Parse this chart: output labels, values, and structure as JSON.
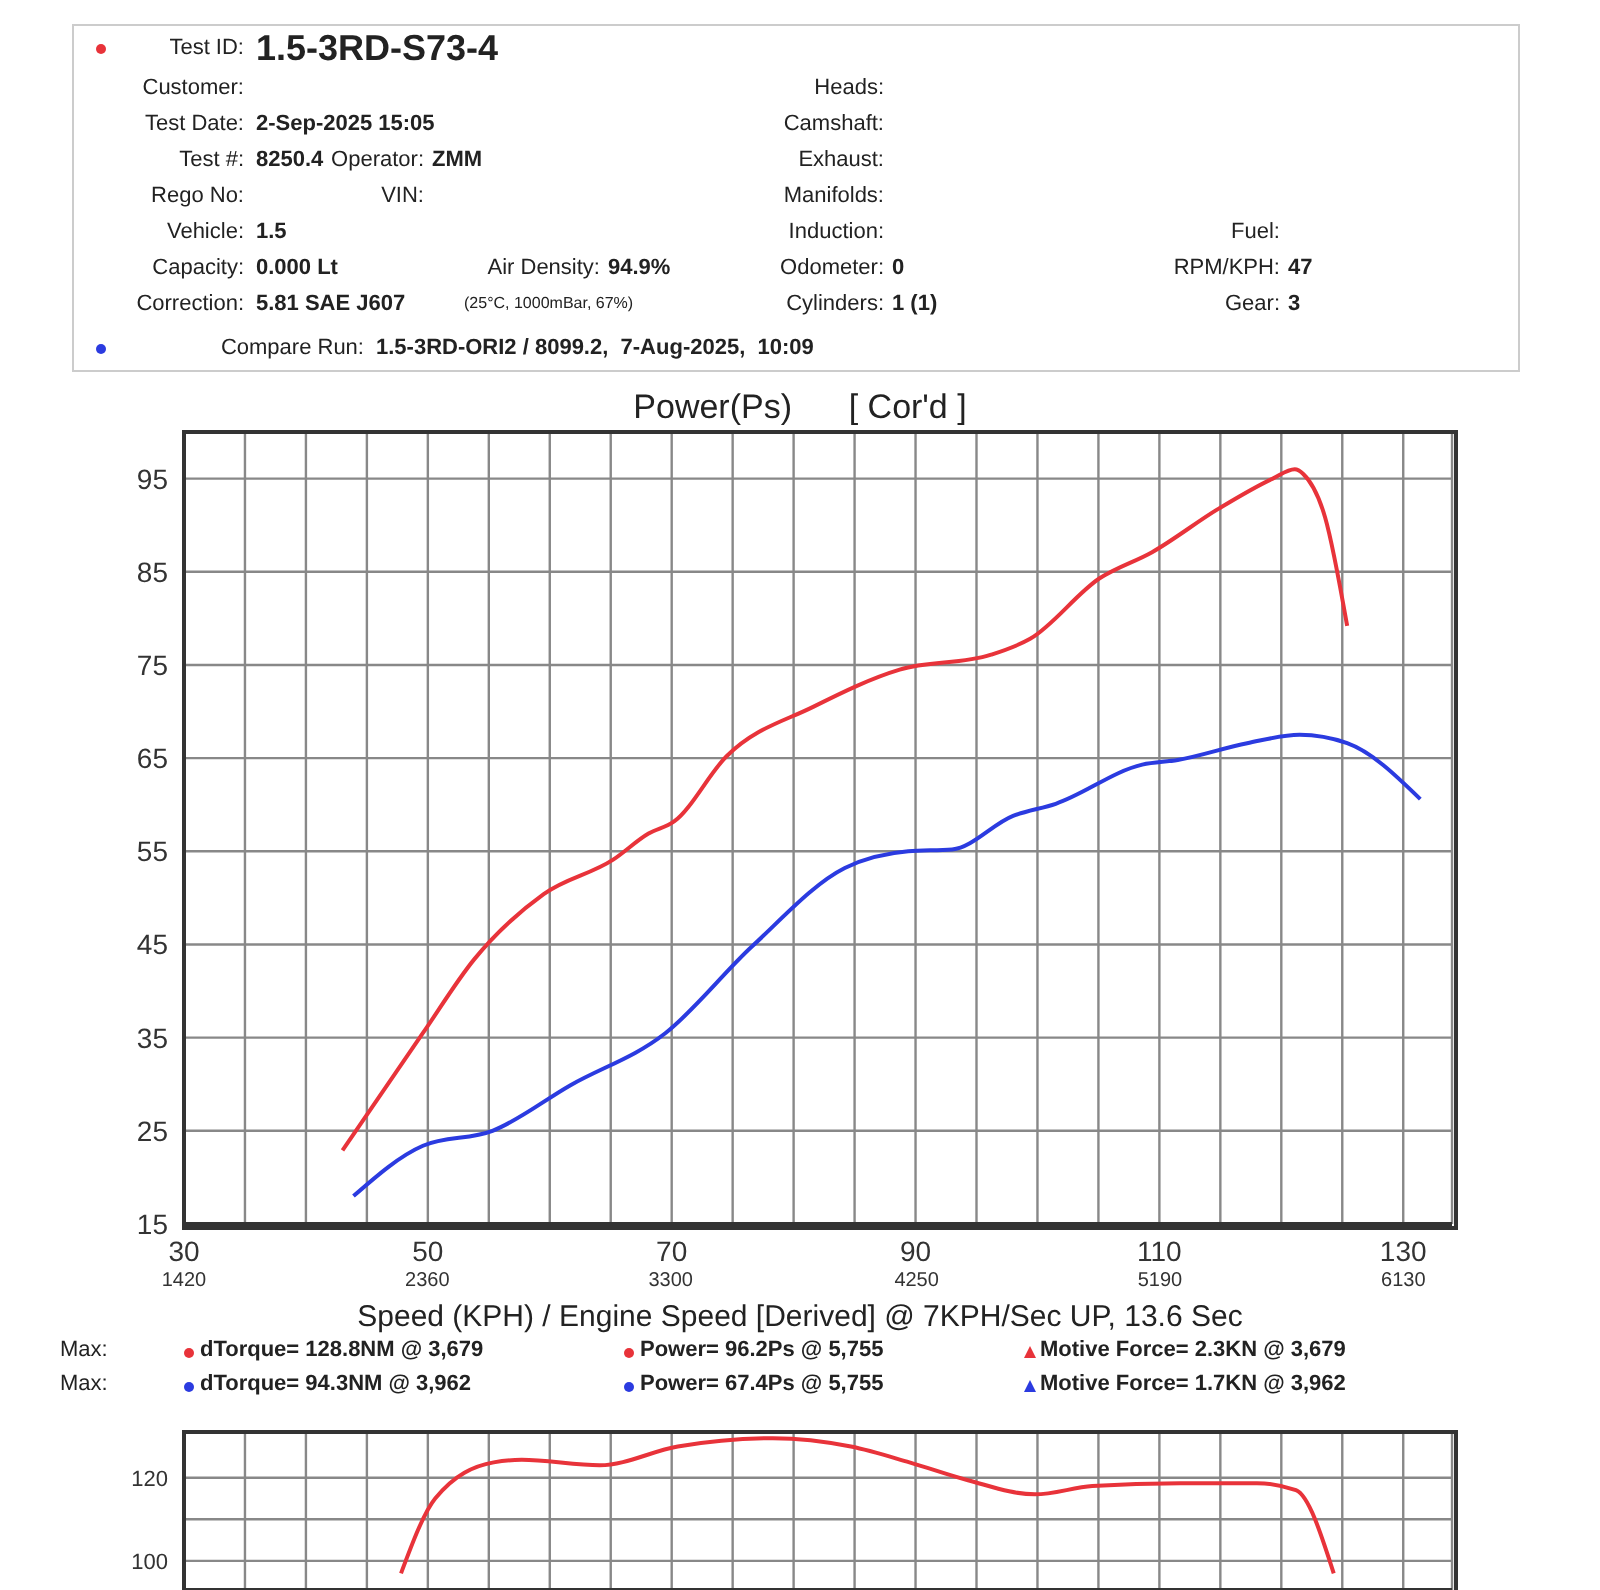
{
  "chart_data": [
    {
      "type": "line",
      "title": "Power(Ps)      [ Cor'd ]",
      "xlabel": "Speed (KPH) / Engine Speed [Derived] @ 7KPH/Sec UP, 13.6 Sec",
      "annotations": [
        "Test ID:",
        "1.5-3RD-S73-4",
        "Customer:",
        "Heads:",
        "Test Date:",
        "2-Sep-2025 15:05",
        "Camshaft:",
        "Test #:",
        "8250.4",
        "Operator:",
        "ZMM",
        "Exhaust:",
        "Rego No:",
        "VIN:",
        "Manifolds:",
        "Vehicle:",
        "1.5",
        "Induction:",
        "Fuel:",
        "Capacity:",
        "0.000 Lt",
        "Air Density:",
        "94.9%",
        "Odometer:",
        "0",
        "RPM/KPH:",
        "47",
        "Correction:",
        "5.81 SAE J607",
        "(25°C, 1000mBar, 67%)",
        "Cylinders:",
        "1 (1)",
        "Gear:",
        "3",
        "Compare Run:",
        "1.5-3RD-ORI2 / 8099.2,  7-Aug-2025,  10:09",
        "Max:",
        "dTorque= 128.8NM @ 3,679",
        "Power= 96.2Ps @ 5,755",
        "Motive Force= 2.3KN @ 3,679",
        "Max:",
        "dTorque= 94.3NM @ 3,962",
        "Power= 67.4Ps @ 5,755",
        "Motive Force= 1.7KN @ 3,962"
      ],
      "series": [
        {
          "color": "#e8333a",
          "x": [
            43.0,
            49.6,
            53.8,
            59.5,
            65.2,
            68.1,
            70.2,
            74.5,
            81.6,
            88.7,
            96.2,
            99.4,
            105.1,
            109.4,
            114.9,
            119.3,
            121.1,
            121.8,
            123.6,
            125.4
          ],
          "values": [
            22.9,
            35.5,
            43.4,
            50.4,
            54.1,
            56.9,
            58.2,
            65.2,
            70.5,
            74.5,
            76.1,
            77.8,
            84.3,
            87.1,
            91.8,
            95.0,
            96.0,
            95.5,
            90.8,
            79.2
          ]
        },
        {
          "color": "#2b3be0",
          "x": [
            43.9,
            49.6,
            55.3,
            61.7,
            69.5,
            76.6,
            84.2,
            89.4,
            93.0,
            98.0,
            101.5,
            108.6,
            111.5,
            117.2,
            121.5,
            125.4,
            131.4
          ],
          "values": [
            18.0,
            23.4,
            25.0,
            29.9,
            35.5,
            44.8,
            53.2,
            55.0,
            55.2,
            58.8,
            60.1,
            64.3,
            64.8,
            66.6,
            67.5,
            66.6,
            60.6
          ]
        }
      ],
      "xlim": [
        30,
        134
      ],
      "ylim": [
        15,
        100
      ],
      "xticks": [
        30,
        {
          "value": 35,
          "label": null
        },
        {
          "value": 40,
          "label": null
        },
        {
          "value": 45,
          "label": null
        },
        50,
        {
          "value": 55,
          "label": null
        },
        {
          "value": 60,
          "label": null
        },
        {
          "value": 65,
          "label": null
        },
        70,
        {
          "value": 75,
          "label": null
        },
        {
          "value": 80,
          "label": null
        },
        {
          "value": 85,
          "label": null
        },
        90,
        {
          "value": 95,
          "label": null
        },
        {
          "value": 100,
          "label": null
        },
        {
          "value": 105,
          "label": null
        },
        110,
        {
          "value": 115,
          "label": null
        },
        {
          "value": 120,
          "label": null
        },
        {
          "value": 125,
          "label": null
        },
        130
      ],
      "x2lim": [
        1420,
        6318
      ],
      "x2ticks": [
        1420,
        2360,
        3300,
        4250,
        5190,
        6130
      ],
      "yticks": [
        15,
        25,
        35,
        45,
        55,
        65,
        75,
        85,
        95
      ],
      "grid": true,
      "legend": false,
      "marker": "none",
      "line_style": "solid"
    },
    {
      "type": "line",
      "series": [
        {
          "color": "#e8333a",
          "x": [
            47.8,
            50.6,
            55.4,
            57.7,
            64.1,
            70.5,
            78.3,
            84.7,
            89.5,
            94.3,
            99.8,
            104.5,
            111.7,
            118.0,
            121.2,
            124.3
          ],
          "values": [
            97,
            115,
            123.7,
            124.3,
            123,
            127.5,
            129.5,
            127.5,
            123.7,
            119.4,
            116,
            118,
            118.7,
            118.7,
            117,
            97
          ]
        }
      ],
      "xlim": [
        30,
        134
      ],
      "ylim": [
        93,
        131
      ],
      "xticks": [
        30,
        35,
        40,
        45,
        50,
        55,
        60,
        65,
        70,
        75,
        80,
        85,
        90,
        95,
        100,
        105,
        110,
        115,
        120,
        125,
        130
      ],
      "yticks": [
        100,
        {
          "value": 110,
          "label": null
        },
        120
      ],
      "tick_labels": "y",
      "grid": true,
      "legend": false,
      "marker": "none",
      "line_style": "solid"
    }
  ]
}
